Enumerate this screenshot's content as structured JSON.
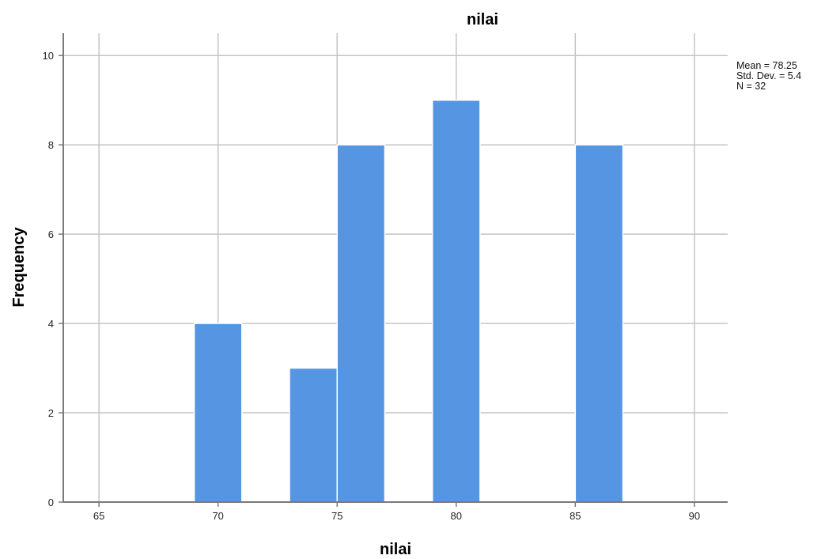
{
  "chart_data": {
    "type": "bar",
    "title": "nilai",
    "xlabel": "nilai",
    "ylabel": "Frequency",
    "xlim": [
      63.5,
      91.4
    ],
    "ylim": [
      0,
      10.5
    ],
    "x_ticks": [
      65,
      70,
      75,
      80,
      85,
      90
    ],
    "y_ticks": [
      0,
      2,
      4,
      6,
      8,
      10
    ],
    "grid": true,
    "bars": [
      {
        "x_start": 69,
        "x_end": 71,
        "value": 4
      },
      {
        "x_start": 73,
        "x_end": 75,
        "value": 3
      },
      {
        "x_start": 75,
        "x_end": 77,
        "value": 8
      },
      {
        "x_start": 79,
        "x_end": 81,
        "value": 9
      },
      {
        "x_start": 85,
        "x_end": 87,
        "value": 8
      }
    ],
    "bar_color": "#5595e2",
    "bar_edge_color": "#ffffff",
    "grid_color": "#c4c4c4",
    "axis_color": "#7a7a7a",
    "stats_placement": "top-right",
    "stats": [
      "Mean = 78.25",
      "Std. Dev. = 5.4",
      "N = 32"
    ]
  }
}
